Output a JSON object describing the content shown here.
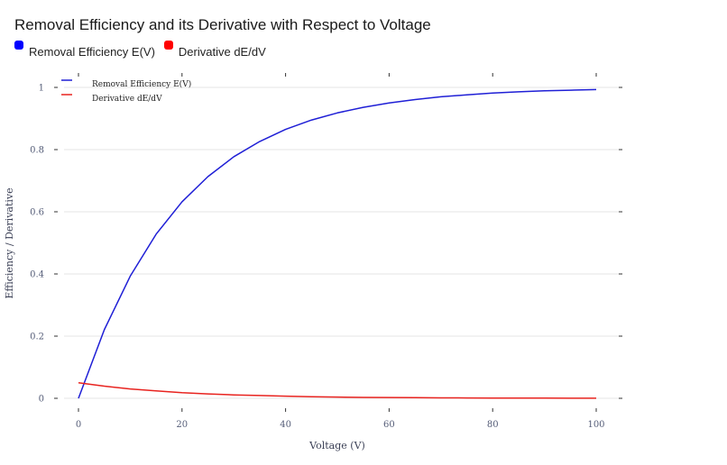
{
  "chart_data": {
    "type": "line",
    "title": "Removal Efficiency and its Derivative with Respect to Voltage",
    "xlabel": "Voltage (V)",
    "ylabel": "Efficiency / Derivative",
    "xlim": [
      0,
      100
    ],
    "ylim": [
      0,
      1
    ],
    "x_ticks": [
      "0",
      "20",
      "40",
      "60",
      "80",
      "100"
    ],
    "y_ticks": [
      "0",
      "0.2",
      "0.4",
      "0.6",
      "0.8",
      "1"
    ],
    "grid": "horizontal",
    "legend_placement": "top-left",
    "x": [
      0,
      5,
      10,
      15,
      20,
      25,
      30,
      35,
      40,
      45,
      50,
      55,
      60,
      65,
      70,
      75,
      80,
      85,
      90,
      95,
      100
    ],
    "series": [
      {
        "name": "Removal Efficiency E(V)",
        "color": "#1f1fd6",
        "swatch": "#0000ff",
        "values": [
          0,
          0.221,
          0.393,
          0.528,
          0.632,
          0.713,
          0.777,
          0.826,
          0.865,
          0.895,
          0.918,
          0.936,
          0.95,
          0.961,
          0.97,
          0.976,
          0.982,
          0.986,
          0.989,
          0.991,
          0.993
        ]
      },
      {
        "name": "Derivative dE/dV",
        "color": "#e8231f",
        "swatch": "#ff0000",
        "values": [
          0.05,
          0.039,
          0.03,
          0.024,
          0.018,
          0.014,
          0.011,
          0.009,
          0.007,
          0.005,
          0.004,
          0.003,
          0.0025,
          0.002,
          0.0015,
          0.0012,
          0.0009,
          0.0007,
          0.0006,
          0.0004,
          0.0003
        ]
      }
    ]
  }
}
